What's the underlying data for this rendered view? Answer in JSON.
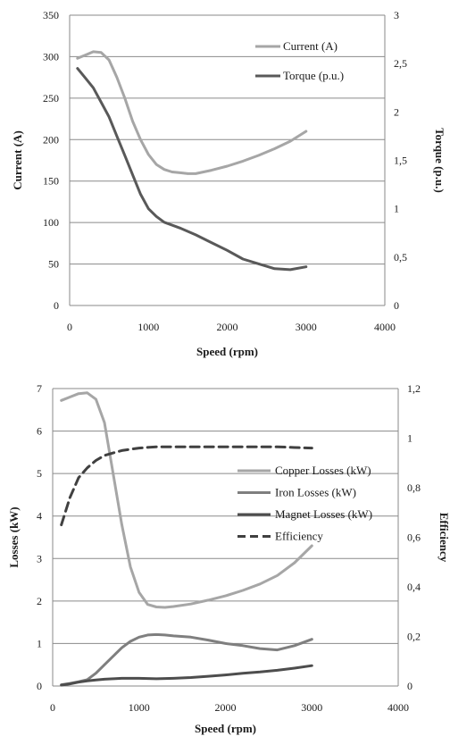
{
  "chart_data": [
    {
      "type": "line",
      "title": "",
      "xlabel": "Speed (rpm)",
      "ylabel": "Current (A)",
      "y2label": "Torque (p.u.)",
      "xlim": [
        0,
        4000
      ],
      "ylim": [
        0,
        350
      ],
      "y2lim": [
        0,
        3
      ],
      "x_ticks": [
        "0",
        "1000",
        "2000",
        "3000",
        "4000"
      ],
      "y_ticks": [
        "0",
        "50",
        "100",
        "150",
        "200",
        "250",
        "300",
        "350"
      ],
      "y2_ticks": [
        "0",
        "0,5",
        "1",
        "1,5",
        "2",
        "2,5",
        "3"
      ],
      "grid": true,
      "legend_position": "top-right",
      "series": [
        {
          "name": "Current (A)",
          "axis": "left",
          "color": "#a6a6a6",
          "dash": "solid",
          "x": [
            100,
            200,
            300,
            400,
            500,
            600,
            700,
            800,
            900,
            1000,
            1100,
            1200,
            1300,
            1400,
            1500,
            1600,
            1800,
            2000,
            2200,
            2400,
            2600,
            2800,
            3000
          ],
          "y": [
            298,
            302,
            306,
            305,
            296,
            275,
            250,
            222,
            200,
            182,
            170,
            164,
            161,
            160,
            159,
            159,
            163,
            168,
            174,
            181,
            189,
            198,
            210
          ]
        },
        {
          "name": "Torque (p.u.)",
          "axis": "right",
          "color": "#595959",
          "dash": "solid",
          "x": [
            100,
            200,
            300,
            400,
            500,
            600,
            700,
            800,
            900,
            1000,
            1100,
            1200,
            1400,
            1600,
            1800,
            2000,
            2200,
            2400,
            2600,
            2800,
            3000
          ],
          "y": [
            2.45,
            2.35,
            2.25,
            2.1,
            1.95,
            1.75,
            1.55,
            1.35,
            1.15,
            1.0,
            0.92,
            0.86,
            0.8,
            0.73,
            0.65,
            0.57,
            0.48,
            0.43,
            0.38,
            0.37,
            0.4
          ]
        }
      ]
    },
    {
      "type": "line",
      "title": "",
      "xlabel": "Speed (rpm)",
      "ylabel": "Losses (kW)",
      "y2label": "Efficiency",
      "xlim": [
        0,
        4000
      ],
      "ylim": [
        0,
        7
      ],
      "y2lim": [
        0,
        1.2
      ],
      "x_ticks": [
        "0",
        "1000",
        "2000",
        "3000",
        "4000"
      ],
      "y_ticks": [
        "0",
        "1",
        "2",
        "3",
        "4",
        "5",
        "6",
        "7"
      ],
      "y2_ticks": [
        "0",
        "0,2",
        "0,4",
        "0,6",
        "0,8",
        "1",
        "1,2"
      ],
      "grid": true,
      "legend_position": "right",
      "series": [
        {
          "name": "Copper Losses (kW)",
          "axis": "left",
          "color": "#a6a6a6",
          "dash": "solid",
          "x": [
            100,
            200,
            300,
            400,
            500,
            600,
            700,
            800,
            900,
            1000,
            1100,
            1200,
            1300,
            1400,
            1600,
            1800,
            2000,
            2200,
            2400,
            2600,
            2800,
            3000
          ],
          "y": [
            6.72,
            6.8,
            6.88,
            6.9,
            6.75,
            6.2,
            5.0,
            3.8,
            2.8,
            2.2,
            1.92,
            1.86,
            1.85,
            1.87,
            1.93,
            2.02,
            2.12,
            2.25,
            2.4,
            2.6,
            2.9,
            3.3
          ]
        },
        {
          "name": "Iron Losses (kW)",
          "axis": "left",
          "color": "#7f7f7f",
          "dash": "solid",
          "x": [
            100,
            200,
            300,
            400,
            500,
            600,
            700,
            800,
            900,
            1000,
            1100,
            1200,
            1300,
            1400,
            1600,
            1800,
            2000,
            2200,
            2400,
            2600,
            2800,
            3000
          ],
          "y": [
            0.03,
            0.06,
            0.1,
            0.15,
            0.3,
            0.5,
            0.7,
            0.9,
            1.05,
            1.15,
            1.2,
            1.21,
            1.2,
            1.18,
            1.15,
            1.08,
            1.0,
            0.95,
            0.88,
            0.85,
            0.95,
            1.1
          ]
        },
        {
          "name": "Magnet Losses (kW)",
          "axis": "left",
          "color": "#4d4d4d",
          "dash": "solid",
          "x": [
            100,
            200,
            300,
            400,
            500,
            600,
            700,
            800,
            900,
            1000,
            1200,
            1400,
            1600,
            1800,
            2000,
            2200,
            2400,
            2600,
            2800,
            3000
          ],
          "y": [
            0.02,
            0.05,
            0.09,
            0.12,
            0.14,
            0.16,
            0.17,
            0.18,
            0.18,
            0.18,
            0.17,
            0.18,
            0.2,
            0.23,
            0.26,
            0.3,
            0.33,
            0.37,
            0.42,
            0.48
          ]
        },
        {
          "name": "Efficiency",
          "axis": "right",
          "color": "#404040",
          "dash": "dashed",
          "x": [
            100,
            200,
            300,
            400,
            500,
            600,
            700,
            800,
            900,
            1000,
            1200,
            1400,
            1600,
            1800,
            2000,
            2200,
            2400,
            2600,
            2800,
            3000
          ],
          "y": [
            0.65,
            0.76,
            0.84,
            0.88,
            0.91,
            0.93,
            0.94,
            0.95,
            0.955,
            0.96,
            0.965,
            0.965,
            0.965,
            0.965,
            0.965,
            0.965,
            0.965,
            0.965,
            0.962,
            0.96
          ]
        }
      ]
    }
  ]
}
